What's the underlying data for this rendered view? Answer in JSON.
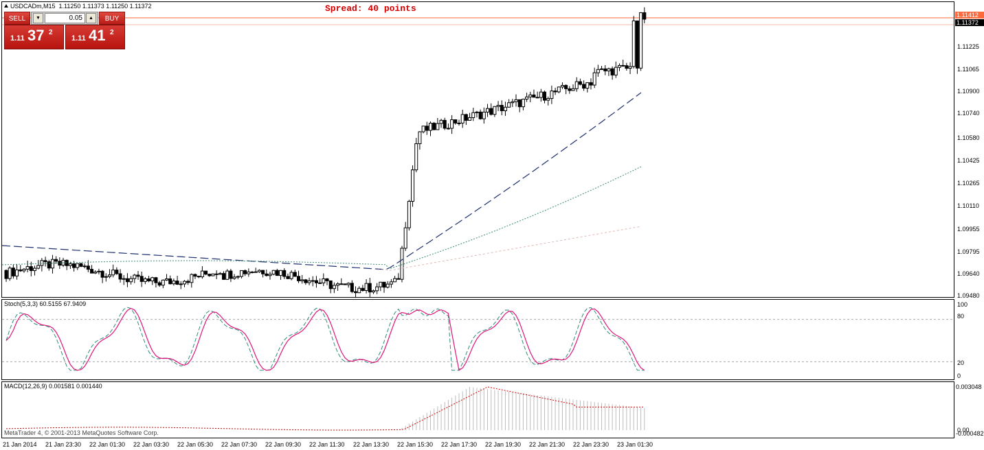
{
  "window": {
    "symbol_title": "USDCADm,M15",
    "ohlc": "1.11250 1.11373 1.11250 1.11372"
  },
  "spread_text": "Spread: 40 points",
  "trade_panel": {
    "sell_label": "SELL",
    "buy_label": "BUY",
    "lot_value": "0.05",
    "sell_price": {
      "main": "1.11",
      "big": "37",
      "sup": "2"
    },
    "buy_price": {
      "main": "1.11",
      "big": "41",
      "sup": "2"
    }
  },
  "price_axis": {
    "labels": [
      "1.11225",
      "1.11065",
      "1.10900",
      "1.10740",
      "1.10580",
      "1.10425",
      "1.10265",
      "1.10110",
      "1.09955",
      "1.09795",
      "1.09640",
      "1.09480"
    ],
    "ask_tag": "1.11412",
    "bid_tag": "1.11372"
  },
  "stoch": {
    "title": "Stoch(5,3,3) 60.5155 67.9409",
    "levels": [
      "100",
      "80",
      "20",
      "0"
    ]
  },
  "macd": {
    "title": "MACD(12,26,9) 0.001581 0.001440",
    "levels": [
      "0.003048",
      "0.00",
      "-0.000482"
    ]
  },
  "time_axis": [
    "21 Jan 2014",
    "21 Jan 23:30",
    "22 Jan 01:30",
    "22 Jan 03:30",
    "22 Jan 05:30",
    "22 Jan 07:30",
    "22 Jan 09:30",
    "22 Jan 11:30",
    "22 Jan 13:30",
    "22 Jan 15:30",
    "22 Jan 17:30",
    "22 Jan 19:30",
    "22 Jan 21:30",
    "22 Jan 23:30",
    "23 Jan 01:30"
  ],
  "copyright": "MetaTrader 4, © 2001-2013 MetaQuotes Software Corp.",
  "colors": {
    "accent_red": "#d40000",
    "trade_red": "#c4211b",
    "ask_line": "#ff6a3d",
    "ma_slow": "#1f2f6e",
    "ma_mid": "#3a8a76",
    "ma_fast": "#e0b6b6",
    "stoch_main": "#2e8b7a",
    "stoch_signal": "#e0137a",
    "macd_hist": "#bbbbbb",
    "macd_signal": "#d40000"
  },
  "chart_data": {
    "type": "candlestick",
    "ylim": [
      1.0948,
      1.1141
    ],
    "candles_close_trend": [
      1.0965,
      1.0963,
      1.0968,
      1.0971,
      1.0967,
      1.0962,
      1.0966,
      1.097,
      1.0972,
      1.0968,
      1.096,
      1.0955,
      1.0958,
      1.0954,
      1.096,
      1.0963,
      1.0958,
      1.0957,
      1.0962,
      1.0966,
      1.0963,
      1.096,
      1.0955,
      1.0962,
      1.0965,
      1.104,
      1.106,
      1.107,
      1.1075,
      1.108,
      1.1078,
      1.1082,
      1.1085,
      1.109,
      1.1095,
      1.1105,
      1.111,
      1.1108,
      1.1135,
      1.1137
    ]
  }
}
